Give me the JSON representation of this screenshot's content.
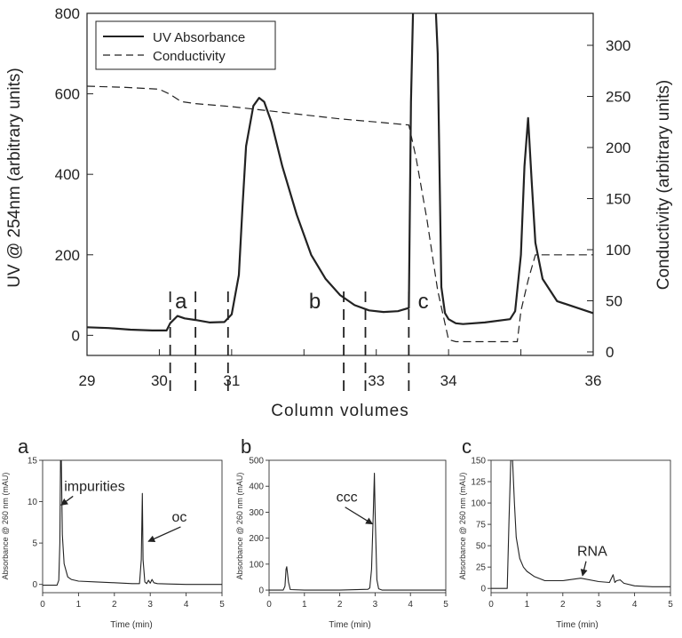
{
  "chart_data": [
    {
      "type": "line",
      "id": "main",
      "xlabel": "Column volumes",
      "ylabel": "UV @ 254nm (arbitrary units)",
      "y2label": "Conductivity (arbitrary units)",
      "xlim": [
        29,
        36
      ],
      "ylim": [
        -50,
        800
      ],
      "y2lim": [
        0,
        320
      ],
      "x_ticks": [
        29,
        30,
        31,
        32,
        33,
        34,
        35,
        36
      ],
      "x_tick_labels": [
        "29",
        "30",
        "31",
        "",
        "33",
        "34",
        "",
        "36"
      ],
      "y_ticks": [
        0,
        200,
        400,
        600,
        800
      ],
      "y2_ticks": [
        0,
        50,
        100,
        150,
        200,
        250,
        300
      ],
      "legend_position": "top-left",
      "series": [
        {
          "name": "UV Absorbance",
          "axis": "left",
          "style": "solid",
          "x": [
            29.0,
            29.3,
            29.6,
            29.9,
            30.1,
            30.15,
            30.25,
            30.35,
            30.5,
            30.7,
            30.9,
            31.0,
            31.1,
            31.15,
            31.2,
            31.3,
            31.38,
            31.45,
            31.55,
            31.7,
            31.9,
            32.1,
            32.3,
            32.5,
            32.7,
            32.9,
            33.1,
            33.3,
            33.45,
            33.48,
            33.52,
            33.55,
            33.6,
            33.8,
            33.85,
            33.9,
            33.95,
            34.0,
            34.1,
            34.2,
            34.5,
            34.85,
            34.92,
            35.0,
            35.05,
            35.1,
            35.15,
            35.2,
            35.3,
            35.5,
            36.0
          ],
          "y": [
            20,
            18,
            14,
            12,
            12,
            30,
            48,
            42,
            38,
            32,
            33,
            52,
            150,
            320,
            470,
            570,
            590,
            580,
            530,
            420,
            300,
            200,
            140,
            100,
            75,
            62,
            58,
            60,
            68,
            580,
            900,
            900,
            900,
            900,
            700,
            120,
            55,
            40,
            30,
            28,
            32,
            40,
            60,
            200,
            420,
            540,
            380,
            230,
            140,
            85,
            55
          ]
        },
        {
          "name": "Conductivity",
          "axis": "right",
          "style": "dashed",
          "x": [
            29.0,
            29.5,
            30.0,
            30.15,
            30.3,
            30.5,
            31.0,
            31.5,
            32.0,
            32.5,
            33.0,
            33.45,
            33.55,
            33.7,
            33.85,
            34.0,
            34.1,
            34.3,
            34.5,
            34.85,
            34.95,
            35.0,
            35.1,
            35.2,
            36.0
          ],
          "y": [
            260,
            259,
            257,
            252,
            245,
            243,
            240,
            236,
            232,
            228,
            225,
            222,
            190,
            130,
            60,
            12,
            10,
            10,
            10,
            10,
            10,
            40,
            70,
            95,
            95
          ]
        }
      ],
      "region_markers": [
        30.15,
        30.5,
        30.95,
        32.55,
        32.85,
        33.45
      ],
      "region_labels": [
        {
          "text": "a",
          "x": 30.3,
          "y": 40
        },
        {
          "text": "b",
          "x": 32.15,
          "y": 40
        },
        {
          "text": "c",
          "x": 33.65,
          "y": 40
        }
      ]
    },
    {
      "type": "line",
      "id": "a",
      "panel_label": "a",
      "xlabel": "Time (min)",
      "ylabel": "Absorbance @ 260 nm (mAU)",
      "xlim": [
        0,
        5
      ],
      "ylim": [
        -1,
        15
      ],
      "x_ticks": [
        0,
        1,
        2,
        3,
        4,
        5
      ],
      "y_ticks": [
        0,
        5,
        10,
        15
      ],
      "series": [
        {
          "x": [
            0,
            0.4,
            0.45,
            0.48,
            0.5,
            0.52,
            0.55,
            0.6,
            0.7,
            0.8,
            1.0,
            1.5,
            2.0,
            2.5,
            2.7,
            2.75,
            2.78,
            2.8,
            2.85,
            2.9,
            2.95,
            3.0,
            3.05,
            3.1,
            3.2,
            3.5,
            4.0,
            5.0
          ],
          "y": [
            -0.1,
            -0.1,
            0.5,
            5,
            15.5,
            15.5,
            6,
            2.5,
            0.9,
            0.6,
            0.4,
            0.3,
            0.2,
            0.1,
            0.1,
            3,
            11,
            3,
            0.3,
            0.1,
            0.5,
            0.15,
            0.6,
            0.2,
            0.1,
            0.05,
            0,
            0
          ]
        }
      ],
      "annotations": [
        {
          "text": "impurities",
          "tx": 0.6,
          "ty": 11.3,
          "ax": 0.52,
          "ay": 9.6
        },
        {
          "text": "oc",
          "tx": 3.6,
          "ty": 7.6,
          "ax": 2.95,
          "ay": 5.2
        }
      ]
    },
    {
      "type": "line",
      "id": "b",
      "panel_label": "b",
      "xlabel": "Time (min)",
      "ylabel": "Absorbance @ 260 nm (mAU)",
      "xlim": [
        0,
        5
      ],
      "ylim": [
        -10,
        500
      ],
      "x_ticks": [
        0,
        1,
        2,
        3,
        4,
        5
      ],
      "y_ticks": [
        0,
        100,
        200,
        300,
        400,
        500
      ],
      "series": [
        {
          "x": [
            0,
            0.4,
            0.45,
            0.48,
            0.5,
            0.55,
            0.6,
            1.0,
            2.0,
            2.8,
            2.85,
            2.9,
            2.95,
            2.98,
            3.0,
            3.05,
            3.1,
            3.2,
            4.0,
            5.0
          ],
          "y": [
            0,
            0,
            15,
            80,
            90,
            30,
            2,
            0,
            0,
            3,
            8,
            80,
            300,
            450,
            300,
            40,
            5,
            0,
            0,
            0
          ]
        }
      ],
      "annotations": [
        {
          "text": "ccc",
          "tx": 1.9,
          "ty": 340,
          "ax": 2.92,
          "ay": 255
        }
      ]
    },
    {
      "type": "line",
      "id": "c",
      "panel_label": "c",
      "xlabel": "Time (min)",
      "ylabel": "Absorbance @ 260 nm (mAU)",
      "xlim": [
        0,
        5
      ],
      "ylim": [
        -5,
        150
      ],
      "x_ticks": [
        0,
        1,
        2,
        3,
        4,
        5
      ],
      "y_ticks": [
        0,
        25,
        50,
        75,
        100,
        125,
        150
      ],
      "series": [
        {
          "x": [
            0,
            0.45,
            0.5,
            0.55,
            0.6,
            0.65,
            0.7,
            0.8,
            0.9,
            1.0,
            1.2,
            1.5,
            2.0,
            2.5,
            3.0,
            3.3,
            3.4,
            3.45,
            3.5,
            3.6,
            3.7,
            4.0,
            4.5,
            5.0
          ],
          "y": [
            0,
            0,
            80,
            150,
            150,
            100,
            60,
            35,
            25,
            20,
            14,
            9,
            9,
            12,
            8,
            7,
            16,
            7,
            9,
            10,
            6,
            3,
            2,
            2
          ]
        }
      ],
      "annotations": [
        {
          "text": "RNA",
          "tx": 2.4,
          "ty": 38,
          "ax": 2.55,
          "ay": 15
        }
      ]
    }
  ]
}
